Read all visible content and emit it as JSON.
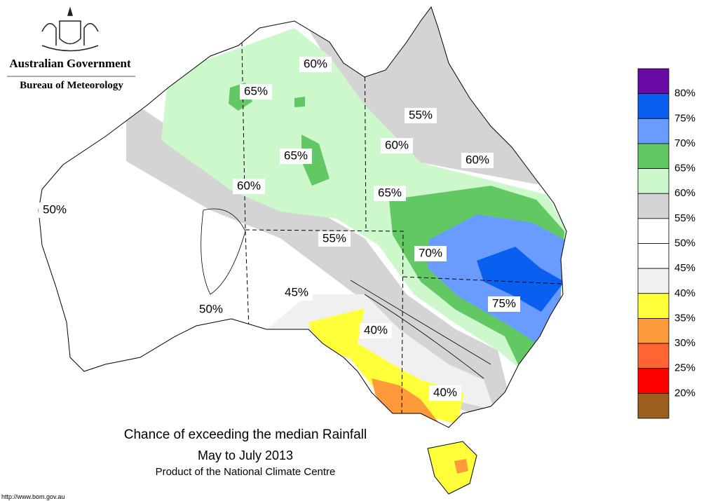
{
  "header": {
    "government": "Australian Government",
    "bureau": "Bureau of Meteorology"
  },
  "map": {
    "labels": [
      "60%",
      "65%",
      "65%",
      "60%",
      "65%",
      "55%",
      "60%",
      "60%",
      "50%",
      "55%",
      "70%",
      "75%",
      "45%",
      "50%",
      "40%",
      "40%"
    ]
  },
  "title": {
    "line1": "Chance of exceeding the median Rainfall",
    "line2": "May to July 2013",
    "line3": "Product of the National Climate Centre"
  },
  "legend": {
    "colors": [
      "#6a0aa6",
      "#0a5ef0",
      "#6a9cff",
      "#62c864",
      "#ccf8cc",
      "#d4d4d4",
      "#ffffff",
      "#ffffff",
      "#f0f0f0",
      "#ffff3a",
      "#ff9a3a",
      "#ff6432",
      "#ff0000",
      "#9a5e1e"
    ],
    "labels": [
      "80%",
      "75%",
      "70%",
      "65%",
      "60%",
      "55%",
      "50%",
      "45%",
      "40%",
      "35%",
      "30%",
      "25%",
      "20%"
    ]
  },
  "footer": {
    "url": "http://www.bom.gov.au"
  }
}
